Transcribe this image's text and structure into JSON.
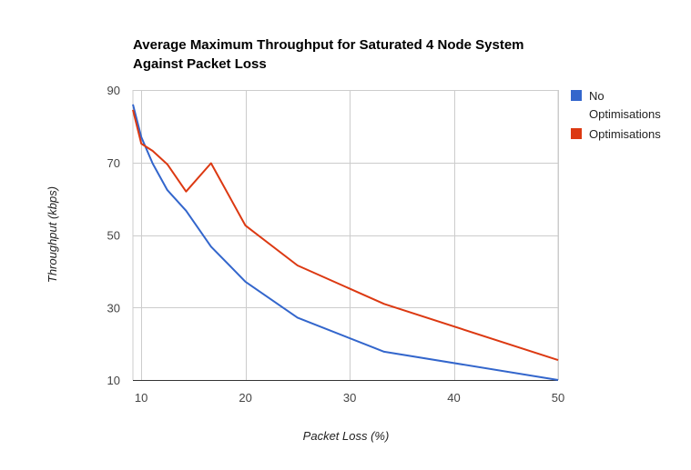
{
  "chart_data": {
    "type": "line",
    "title": "Average Maximum Throughput for Saturated 4 Node System Against Packet Loss",
    "title_lines": [
      "Average Maximum Throughput for Saturated 4 Node System",
      "Against Packet Loss"
    ],
    "xlabel": "Packet Loss (%)",
    "ylabel": "Throughput (kbps)",
    "xlim": [
      9.2,
      50
    ],
    "ylim": [
      10,
      90
    ],
    "x_ticks": [
      10,
      20,
      30,
      40,
      50
    ],
    "y_ticks": [
      10,
      30,
      50,
      70,
      90
    ],
    "grid": true,
    "legend_position": "right",
    "series": [
      {
        "name": "No Optimisations",
        "legend_lines": [
          "No",
          "Optimisations"
        ],
        "color": "#3366cc",
        "x": [
          9.2,
          10,
          11.1,
          12.5,
          14.3,
          16.7,
          20,
          25,
          33.3,
          50
        ],
        "y": [
          86,
          77,
          69.7,
          62.4,
          56.7,
          46.8,
          37.1,
          27.2,
          17.8,
          10
        ]
      },
      {
        "name": "Optimisations",
        "legend_lines": [
          "Optimisations"
        ],
        "color": "#dc3912",
        "x": [
          9.2,
          10,
          11.1,
          12.5,
          14.3,
          16.7,
          20,
          25,
          33.3,
          50
        ],
        "y": [
          84.5,
          75.2,
          73.2,
          69.5,
          62,
          69.8,
          52.6,
          41.6,
          31,
          15.5
        ]
      }
    ]
  }
}
